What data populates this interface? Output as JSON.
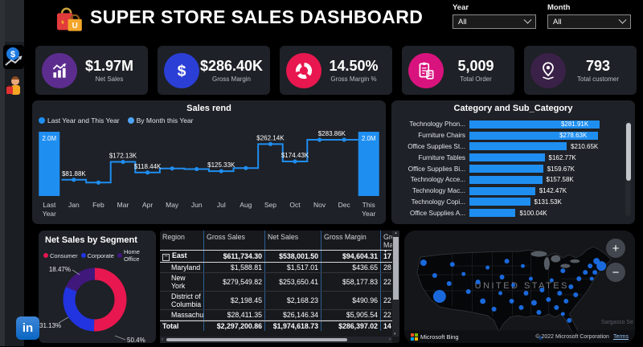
{
  "header": {
    "title": "SUPER STORE SALES DASHBOARD",
    "slicers": [
      {
        "label": "Year",
        "value": "All"
      },
      {
        "label": "Month",
        "value": "All"
      }
    ]
  },
  "kpis": [
    {
      "icon": "bar-chart-icon",
      "value": "$1.97M",
      "label": "Net Sales",
      "color": "#5c2d8e"
    },
    {
      "icon": "dollar-icon",
      "value": "$286.40K",
      "label": "Gross Margin",
      "color": "#2b3fd6"
    },
    {
      "icon": "donut-icon",
      "value": "14.50%",
      "label": "Gross Margin %",
      "color": "#e8174f"
    },
    {
      "icon": "order-icon",
      "value": "5,009",
      "label": "Total Order",
      "color": "#d9137d"
    },
    {
      "icon": "customer-icon",
      "value": "793",
      "label": "Total customer",
      "color": "#3a2147"
    }
  ],
  "chart_data": [
    {
      "type": "bar+line",
      "title": "Sales rend",
      "legend": [
        "Last Year and This Year",
        "By Month this Year"
      ],
      "legend_colors": [
        "#1f8ef1",
        "#4da3f7"
      ],
      "bars": {
        "categories": [
          "Last Year",
          "This Year"
        ],
        "values": [
          2000000,
          2000000
        ],
        "labels": [
          "2.0M",
          "2.0M"
        ],
        "color": "#1f8ef1"
      },
      "line": {
        "x": [
          "Jan",
          "Feb",
          "Mar",
          "Apr",
          "May",
          "Jun",
          "Jul",
          "Aug",
          "Sep",
          "Oct",
          "Nov",
          "Dec"
        ],
        "values_k": [
          81.88,
          68,
          172.13,
          118.44,
          139,
          136,
          125.33,
          141,
          262.14,
          174.43,
          283.86,
          284
        ],
        "labels": {
          "0": "$81.88K",
          "2": "$172.13K",
          "3": "$118.44K",
          "6": "$125.33K",
          "8": "$262.14K",
          "9": "$174.43K",
          "10": "$283.86K"
        },
        "color": "#1f8ef1",
        "ymax_k": 300
      }
    },
    {
      "type": "bar",
      "orientation": "horizontal",
      "title": "Category and Sub_Category",
      "categories": [
        "Technology Phon...",
        "Furniture Chairs",
        "Office Supplies St...",
        "Furniture Tables",
        "Office Supplies Bi...",
        "Technology Acce...",
        "Technology Mac...",
        "Technology Copi...",
        "Office Supplies A..."
      ],
      "values_k": [
        281.91,
        278.63,
        210.65,
        162.77,
        159.67,
        157.58,
        142.47,
        131.53,
        100.04
      ],
      "value_labels": [
        "$281.91K",
        "$278.63K",
        "$210.65K",
        "$162.77K",
        "$159.67K",
        "$157.58K",
        "$142.47K",
        "$131.53K",
        "$100.04K"
      ],
      "color": "#1f8ef1",
      "xmax_k": 282
    },
    {
      "type": "donut",
      "title": "Net Sales by Segment",
      "slices": [
        {
          "name": "Consumer",
          "pct": 50.4,
          "label": "50.4%",
          "color": "#e8174f"
        },
        {
          "name": "Corporate",
          "pct": 31.13,
          "label": "31.13%",
          "color": "#2134e0"
        },
        {
          "name": "Home Office",
          "pct": 18.47,
          "label": "18.47%",
          "color": "#40187c"
        }
      ]
    }
  ],
  "table": {
    "headers": [
      "Region",
      "Gross Sales",
      "Net Sales",
      "Gross Margin",
      "Gross Margi"
    ],
    "rows": [
      {
        "region": "East",
        "cells": [
          "$611,734.30",
          "$538,001.50",
          "$94,604.31",
          "17"
        ],
        "style": "east"
      },
      {
        "region": "Maryland",
        "cells": [
          "$1,588.81",
          "$1,517.01",
          "$436.65",
          "28"
        ],
        "style": "sub"
      },
      {
        "region": "New York",
        "cells": [
          "$279,549.82",
          "$253,650.41",
          "$58,177.83",
          "22"
        ],
        "style": "sub"
      },
      {
        "region": "District of Columbia",
        "cells": [
          "$2,198.45",
          "$2,168.23",
          "$490.96",
          "22"
        ],
        "style": "sub"
      },
      {
        "region": "Massachusetts",
        "cells": [
          "$28,411.35",
          "$26,146.34",
          "$5,905.54",
          "22"
        ],
        "style": "sub"
      },
      {
        "region": "Total",
        "cells": [
          "$2,297,200.86",
          "$1,974,618.73",
          "$286,397.02",
          "14"
        ],
        "style": "total"
      }
    ]
  },
  "map": {
    "label": "UNITED STATES",
    "zoom_in": "+",
    "zoom_out": "−",
    "logo_text": "Microsoft Bing",
    "attribution": "© 2022 Microsoft Corporation",
    "terms": "Terms",
    "corner_label": "Sargasso Se",
    "bubble_color": "#1a6fe8",
    "bubbles": [
      [
        44,
        82,
        8
      ],
      [
        24,
        40,
        4
      ],
      [
        38,
        56,
        3
      ],
      [
        60,
        42,
        3
      ],
      [
        56,
        66,
        3
      ],
      [
        74,
        54,
        2.5
      ],
      [
        80,
        76,
        3
      ],
      [
        92,
        64,
        3
      ],
      [
        98,
        88,
        3.5
      ],
      [
        112,
        98,
        3
      ],
      [
        104,
        46,
        2.5
      ],
      [
        122,
        58,
        3
      ],
      [
        120,
        78,
        2.5
      ],
      [
        134,
        88,
        3
      ],
      [
        136,
        68,
        2.5
      ],
      [
        128,
        38,
        3
      ],
      [
        148,
        44,
        2.5
      ],
      [
        152,
        78,
        3
      ],
      [
        146,
        96,
        3
      ],
      [
        158,
        60,
        2.5
      ],
      [
        162,
        90,
        3.5
      ],
      [
        168,
        102,
        3
      ],
      [
        172,
        74,
        3
      ],
      [
        180,
        86,
        3
      ],
      [
        184,
        62,
        2.5
      ],
      [
        190,
        96,
        3
      ],
      [
        194,
        78,
        3
      ],
      [
        198,
        50,
        3
      ],
      [
        202,
        88,
        3
      ],
      [
        208,
        70,
        3
      ],
      [
        214,
        80,
        3
      ],
      [
        218,
        60,
        3
      ],
      [
        226,
        52,
        3
      ],
      [
        232,
        44,
        3
      ],
      [
        240,
        38,
        4
      ],
      [
        246,
        44,
        6
      ],
      [
        238,
        52,
        3
      ],
      [
        234,
        60,
        2.5
      ],
      [
        206,
        112,
        3
      ],
      [
        198,
        104,
        2.5
      ],
      [
        170,
        134,
        2.5
      ]
    ]
  }
}
